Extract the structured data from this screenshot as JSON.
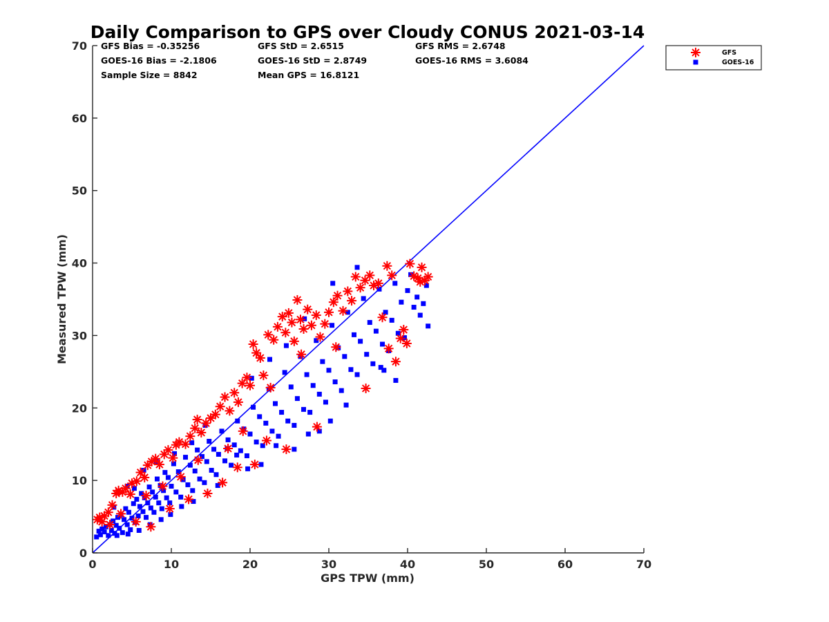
{
  "chart_data": {
    "type": "scatter",
    "title": "Daily Comparison to GPS over Cloudy CONUS 2021-03-14",
    "xlabel": "GPS TPW (mm)",
    "ylabel": "Measured TPW (mm)",
    "xlim": [
      0,
      70
    ],
    "ylim": [
      0,
      70
    ],
    "xticks": [
      "0",
      "10",
      "20",
      "30",
      "40",
      "50",
      "60",
      "70"
    ],
    "yticks": [
      "0",
      "10",
      "20",
      "30",
      "40",
      "50",
      "60",
      "70"
    ],
    "grid": false,
    "legend_position": "outside top-right",
    "stats": [
      [
        "GFS Bias = -0.35256",
        "GFS StD = 2.6515",
        "GFS RMS = 2.6748"
      ],
      [
        "GOES-16 Bias = -2.1806",
        "GOES-16 StD = 2.8749",
        "GOES-16 RMS = 3.6084"
      ],
      [
        "Sample Size = 8842",
        "Mean GPS = 16.8121",
        ""
      ]
    ],
    "reference_line": {
      "from": [
        0,
        0
      ],
      "to": [
        70,
        70
      ],
      "color": "#0000ff"
    },
    "series": [
      {
        "name": "GFS",
        "marker": "asterisk",
        "color": "#ff0000",
        "points": [
          [
            0.6,
            4.6
          ],
          [
            0.9,
            4.9
          ],
          [
            1.2,
            4.3
          ],
          [
            1.5,
            5.1
          ],
          [
            2.0,
            5.6
          ],
          [
            2.5,
            6.6
          ],
          [
            3.0,
            8.2
          ],
          [
            3.3,
            8.6
          ],
          [
            3.8,
            8.4
          ],
          [
            4.2,
            8.9
          ],
          [
            4.8,
            8.1
          ],
          [
            5.0,
            9.6
          ],
          [
            5.6,
            9.9
          ],
          [
            6.1,
            11.1
          ],
          [
            6.6,
            10.4
          ],
          [
            7.0,
            12.1
          ],
          [
            7.5,
            12.6
          ],
          [
            8.0,
            13.0
          ],
          [
            8.5,
            12.2
          ],
          [
            9.1,
            13.6
          ],
          [
            9.6,
            14.2
          ],
          [
            10.2,
            13.1
          ],
          [
            10.6,
            14.9
          ],
          [
            11.0,
            15.3
          ],
          [
            11.8,
            15.0
          ],
          [
            12.4,
            16.1
          ],
          [
            13.0,
            17.2
          ],
          [
            13.3,
            18.4
          ],
          [
            13.8,
            16.6
          ],
          [
            14.4,
            17.9
          ],
          [
            15.0,
            18.6
          ],
          [
            15.6,
            19.1
          ],
          [
            16.2,
            20.2
          ],
          [
            16.8,
            21.5
          ],
          [
            17.4,
            19.6
          ],
          [
            18.0,
            22.1
          ],
          [
            18.5,
            20.8
          ],
          [
            19.0,
            23.4
          ],
          [
            19.6,
            24.2
          ],
          [
            20.0,
            23.1
          ],
          [
            20.4,
            28.8
          ],
          [
            20.8,
            27.6
          ],
          [
            21.3,
            26.9
          ],
          [
            21.7,
            24.5
          ],
          [
            22.3,
            30.1
          ],
          [
            22.6,
            22.8
          ],
          [
            23.0,
            29.4
          ],
          [
            23.5,
            31.2
          ],
          [
            24.1,
            32.6
          ],
          [
            24.5,
            30.4
          ],
          [
            24.9,
            33.1
          ],
          [
            25.3,
            31.8
          ],
          [
            25.6,
            29.2
          ],
          [
            26.0,
            34.9
          ],
          [
            26.4,
            32.2
          ],
          [
            26.8,
            30.9
          ],
          [
            27.3,
            33.6
          ],
          [
            27.8,
            31.4
          ],
          [
            28.4,
            32.8
          ],
          [
            28.9,
            29.8
          ],
          [
            29.5,
            31.6
          ],
          [
            30.0,
            33.2
          ],
          [
            30.6,
            34.6
          ],
          [
            31.1,
            35.5
          ],
          [
            31.8,
            33.4
          ],
          [
            32.4,
            36.1
          ],
          [
            32.9,
            34.8
          ],
          [
            33.4,
            38.1
          ],
          [
            34.0,
            36.6
          ],
          [
            34.6,
            37.6
          ],
          [
            35.2,
            38.3
          ],
          [
            35.7,
            36.9
          ],
          [
            36.3,
            37.2
          ],
          [
            37.4,
            39.6
          ],
          [
            38.0,
            38.3
          ],
          [
            38.5,
            26.4
          ],
          [
            39.1,
            29.6
          ],
          [
            39.5,
            30.8
          ],
          [
            39.9,
            28.9
          ],
          [
            40.3,
            39.9
          ],
          [
            40.8,
            38.2
          ],
          [
            41.3,
            37.9
          ],
          [
            41.8,
            39.4
          ],
          [
            42.2,
            37.6
          ],
          [
            42.6,
            38.1
          ],
          [
            41.6,
            37.4
          ],
          [
            24.6,
            14.3
          ],
          [
            22.1,
            15.5
          ],
          [
            20.6,
            12.2
          ],
          [
            18.4,
            11.8
          ],
          [
            16.5,
            9.7
          ],
          [
            14.6,
            8.2
          ],
          [
            12.2,
            7.4
          ],
          [
            9.8,
            6.1
          ],
          [
            7.4,
            3.6
          ],
          [
            5.5,
            4.3
          ],
          [
            28.5,
            17.4
          ],
          [
            34.7,
            22.7
          ],
          [
            37.6,
            28.2
          ],
          [
            19.1,
            16.8
          ],
          [
            11.2,
            10.5
          ],
          [
            6.8,
            7.9
          ],
          [
            3.6,
            5.4
          ],
          [
            2.2,
            3.9
          ],
          [
            13.4,
            12.8
          ],
          [
            26.5,
            27.4
          ],
          [
            30.9,
            28.4
          ],
          [
            36.8,
            32.5
          ],
          [
            17.2,
            14.4
          ],
          [
            8.9,
            9.2
          ]
        ]
      },
      {
        "name": "GOES-16",
        "marker": "square",
        "color": "#0000ff",
        "points": [
          [
            0.5,
            2.2
          ],
          [
            0.8,
            3.0
          ],
          [
            1.0,
            2.5
          ],
          [
            1.2,
            3.3
          ],
          [
            1.5,
            2.9
          ],
          [
            1.7,
            3.6
          ],
          [
            2.0,
            2.4
          ],
          [
            2.2,
            3.9
          ],
          [
            2.4,
            3.1
          ],
          [
            2.6,
            4.4
          ],
          [
            2.8,
            2.7
          ],
          [
            3.0,
            3.8
          ],
          [
            3.2,
            4.9
          ],
          [
            3.4,
            3.4
          ],
          [
            3.6,
            5.3
          ],
          [
            3.8,
            2.8
          ],
          [
            4.0,
            4.6
          ],
          [
            4.2,
            6.1
          ],
          [
            4.4,
            3.9
          ],
          [
            4.6,
            5.6
          ],
          [
            4.8,
            3.2
          ],
          [
            5.0,
            4.8
          ],
          [
            5.2,
            6.8
          ],
          [
            5.4,
            4.2
          ],
          [
            5.6,
            7.4
          ],
          [
            5.8,
            5.1
          ],
          [
            6.0,
            6.4
          ],
          [
            6.2,
            8.2
          ],
          [
            6.4,
            5.7
          ],
          [
            6.6,
            7.6
          ],
          [
            6.8,
            4.9
          ],
          [
            7.0,
            6.9
          ],
          [
            7.2,
            9.1
          ],
          [
            7.4,
            6.2
          ],
          [
            7.6,
            8.4
          ],
          [
            7.8,
            5.6
          ],
          [
            8.0,
            7.7
          ],
          [
            8.2,
            10.2
          ],
          [
            8.4,
            6.9
          ],
          [
            8.6,
            9.3
          ],
          [
            8.8,
            6.1
          ],
          [
            9.0,
            8.6
          ],
          [
            9.2,
            11.1
          ],
          [
            9.4,
            7.6
          ],
          [
            9.6,
            10.4
          ],
          [
            9.8,
            6.9
          ],
          [
            10.0,
            9.2
          ],
          [
            10.3,
            12.3
          ],
          [
            10.6,
            8.4
          ],
          [
            10.9,
            11.2
          ],
          [
            11.2,
            7.7
          ],
          [
            11.5,
            10.1
          ],
          [
            11.8,
            13.2
          ],
          [
            12.1,
            9.4
          ],
          [
            12.4,
            12.1
          ],
          [
            12.7,
            8.6
          ],
          [
            13.0,
            11.3
          ],
          [
            13.3,
            14.2
          ],
          [
            13.6,
            10.2
          ],
          [
            13.9,
            13.3
          ],
          [
            14.2,
            9.7
          ],
          [
            14.5,
            12.6
          ],
          [
            14.8,
            15.4
          ],
          [
            15.1,
            11.4
          ],
          [
            15.4,
            14.3
          ],
          [
            15.7,
            10.8
          ],
          [
            16.0,
            13.6
          ],
          [
            16.4,
            16.8
          ],
          [
            16.8,
            12.7
          ],
          [
            17.2,
            15.6
          ],
          [
            17.6,
            12.1
          ],
          [
            18.0,
            14.9
          ],
          [
            18.4,
            18.2
          ],
          [
            18.8,
            14.1
          ],
          [
            19.2,
            17.1
          ],
          [
            19.6,
            13.4
          ],
          [
            20.0,
            16.4
          ],
          [
            20.4,
            20.1
          ],
          [
            20.8,
            15.3
          ],
          [
            21.2,
            18.8
          ],
          [
            21.6,
            14.8
          ],
          [
            22.0,
            17.9
          ],
          [
            22.4,
            22.6
          ],
          [
            22.8,
            16.8
          ],
          [
            23.2,
            20.6
          ],
          [
            23.6,
            16.1
          ],
          [
            24.0,
            19.4
          ],
          [
            24.4,
            24.9
          ],
          [
            24.8,
            18.2
          ],
          [
            25.2,
            22.9
          ],
          [
            25.6,
            17.6
          ],
          [
            26.0,
            21.3
          ],
          [
            26.4,
            27.1
          ],
          [
            26.8,
            19.8
          ],
          [
            27.2,
            24.6
          ],
          [
            27.6,
            19.4
          ],
          [
            28.0,
            23.1
          ],
          [
            28.4,
            29.3
          ],
          [
            28.8,
            21.9
          ],
          [
            29.2,
            26.4
          ],
          [
            29.6,
            20.8
          ],
          [
            30.0,
            25.2
          ],
          [
            30.4,
            31.4
          ],
          [
            30.8,
            23.6
          ],
          [
            31.2,
            28.3
          ],
          [
            31.6,
            22.4
          ],
          [
            32.0,
            27.1
          ],
          [
            32.4,
            33.2
          ],
          [
            32.8,
            25.3
          ],
          [
            33.2,
            30.1
          ],
          [
            33.6,
            24.6
          ],
          [
            34.0,
            29.2
          ],
          [
            34.4,
            35.1
          ],
          [
            34.8,
            27.4
          ],
          [
            35.2,
            31.8
          ],
          [
            35.6,
            26.1
          ],
          [
            36.0,
            30.6
          ],
          [
            36.4,
            36.4
          ],
          [
            36.8,
            28.8
          ],
          [
            37.2,
            33.2
          ],
          [
            37.6,
            27.9
          ],
          [
            38.0,
            32.1
          ],
          [
            38.4,
            37.2
          ],
          [
            38.8,
            30.3
          ],
          [
            39.2,
            34.6
          ],
          [
            39.6,
            29.7
          ],
          [
            40.0,
            36.2
          ],
          [
            40.4,
            38.4
          ],
          [
            40.8,
            33.9
          ],
          [
            41.2,
            35.3
          ],
          [
            41.6,
            32.8
          ],
          [
            42.0,
            34.4
          ],
          [
            42.4,
            36.9
          ],
          [
            42.6,
            31.3
          ],
          [
            38.5,
            23.8
          ],
          [
            37.0,
            25.2
          ],
          [
            36.6,
            25.6
          ],
          [
            30.5,
            37.2
          ],
          [
            33.6,
            39.4
          ],
          [
            15.9,
            9.3
          ],
          [
            17.1,
            14.4
          ],
          [
            18.3,
            13.5
          ],
          [
            19.7,
            11.6
          ],
          [
            21.4,
            12.2
          ],
          [
            23.3,
            14.8
          ],
          [
            25.6,
            14.3
          ],
          [
            27.4,
            16.4
          ],
          [
            28.8,
            16.8
          ],
          [
            30.2,
            18.2
          ],
          [
            32.2,
            20.4
          ],
          [
            10.4,
            13.7
          ],
          [
            8.1,
            12.6
          ],
          [
            6.5,
            11.4
          ],
          [
            4.4,
            9.2
          ],
          [
            12.6,
            15.2
          ],
          [
            14.3,
            17.6
          ],
          [
            20.2,
            24.1
          ],
          [
            22.5,
            26.7
          ],
          [
            24.6,
            28.6
          ],
          [
            26.9,
            32.3
          ],
          [
            3.1,
            2.4
          ],
          [
            4.5,
            2.6
          ],
          [
            5.9,
            3.1
          ],
          [
            7.3,
            3.9
          ],
          [
            8.7,
            4.6
          ],
          [
            9.9,
            5.3
          ],
          [
            11.3,
            6.4
          ],
          [
            12.8,
            7.1
          ],
          [
            2.7,
            6.3
          ],
          [
            5.3,
            8.9
          ]
        ]
      }
    ]
  }
}
